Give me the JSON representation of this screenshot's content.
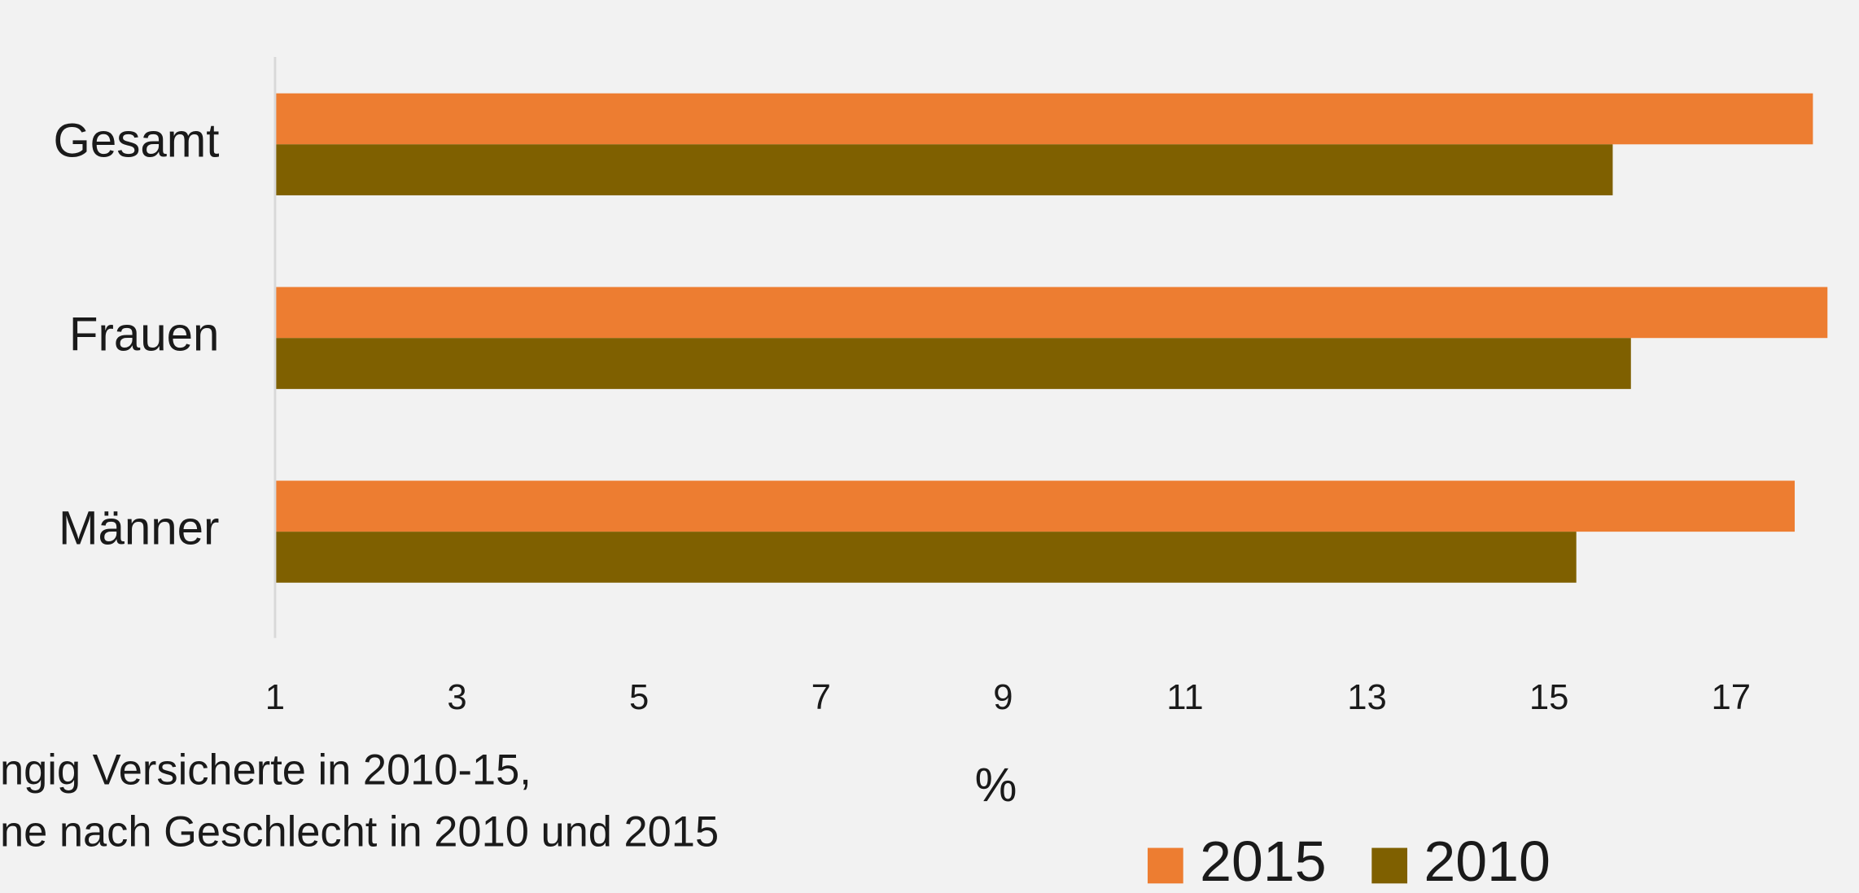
{
  "chart_data": {
    "type": "hbar",
    "categories": [
      "Gesamt",
      "Frauen",
      "Männer"
    ],
    "series": [
      {
        "name": "2015",
        "color": "#ed7d31",
        "values": [
          17.9,
          18.06,
          17.7
        ]
      },
      {
        "name": "2010",
        "color": "#7f6000",
        "values": [
          15.7,
          15.9,
          15.3
        ]
      }
    ],
    "xlabel": "%",
    "xlim": [
      1,
      18.4
    ],
    "xticks": [
      1,
      3,
      5,
      7,
      9,
      11,
      13,
      15,
      17
    ],
    "caption": [
      "ngig Versicherte in 2010-15,",
      "ne nach Geschlecht in 2010 und 2015"
    ],
    "legend": "bottom"
  }
}
